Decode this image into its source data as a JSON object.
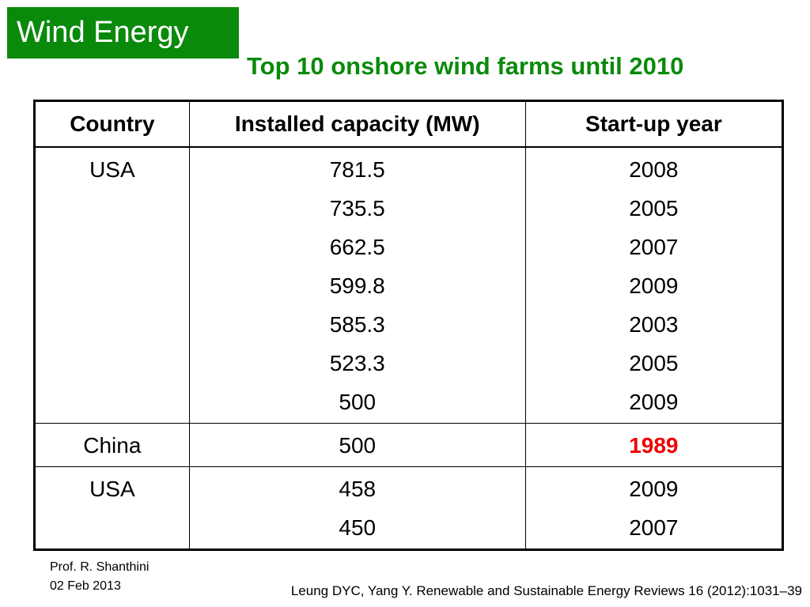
{
  "section_tag": "Wind Energy",
  "title": "Top 10 onshore wind farms until 2010",
  "colors": {
    "accent_green": "#0a8a0a",
    "highlight_red": "#ee0000"
  },
  "table": {
    "headers": [
      "Country",
      "Installed capacity (MW)",
      "Start-up year"
    ],
    "groups": [
      {
        "country": "USA",
        "capacities": [
          "781.5",
          "735.5",
          "662.5",
          "599.8",
          "585.3",
          "523.3",
          "500"
        ],
        "years": [
          "2008",
          "2005",
          "2007",
          "2009",
          "2003",
          "2005",
          "2009"
        ]
      },
      {
        "country": "China",
        "capacities": [
          "500"
        ],
        "years": [
          "1989"
        ]
      },
      {
        "country": "USA",
        "capacities": [
          "458",
          "450"
        ],
        "years": [
          "2009",
          "2007"
        ]
      }
    ]
  },
  "footer": {
    "author": "Prof. R. Shanthini",
    "date": "02 Feb 2013",
    "citation": "Leung DYC, Yang Y. Renewable and Sustainable Energy Reviews 16 (2012):1031–39"
  }
}
